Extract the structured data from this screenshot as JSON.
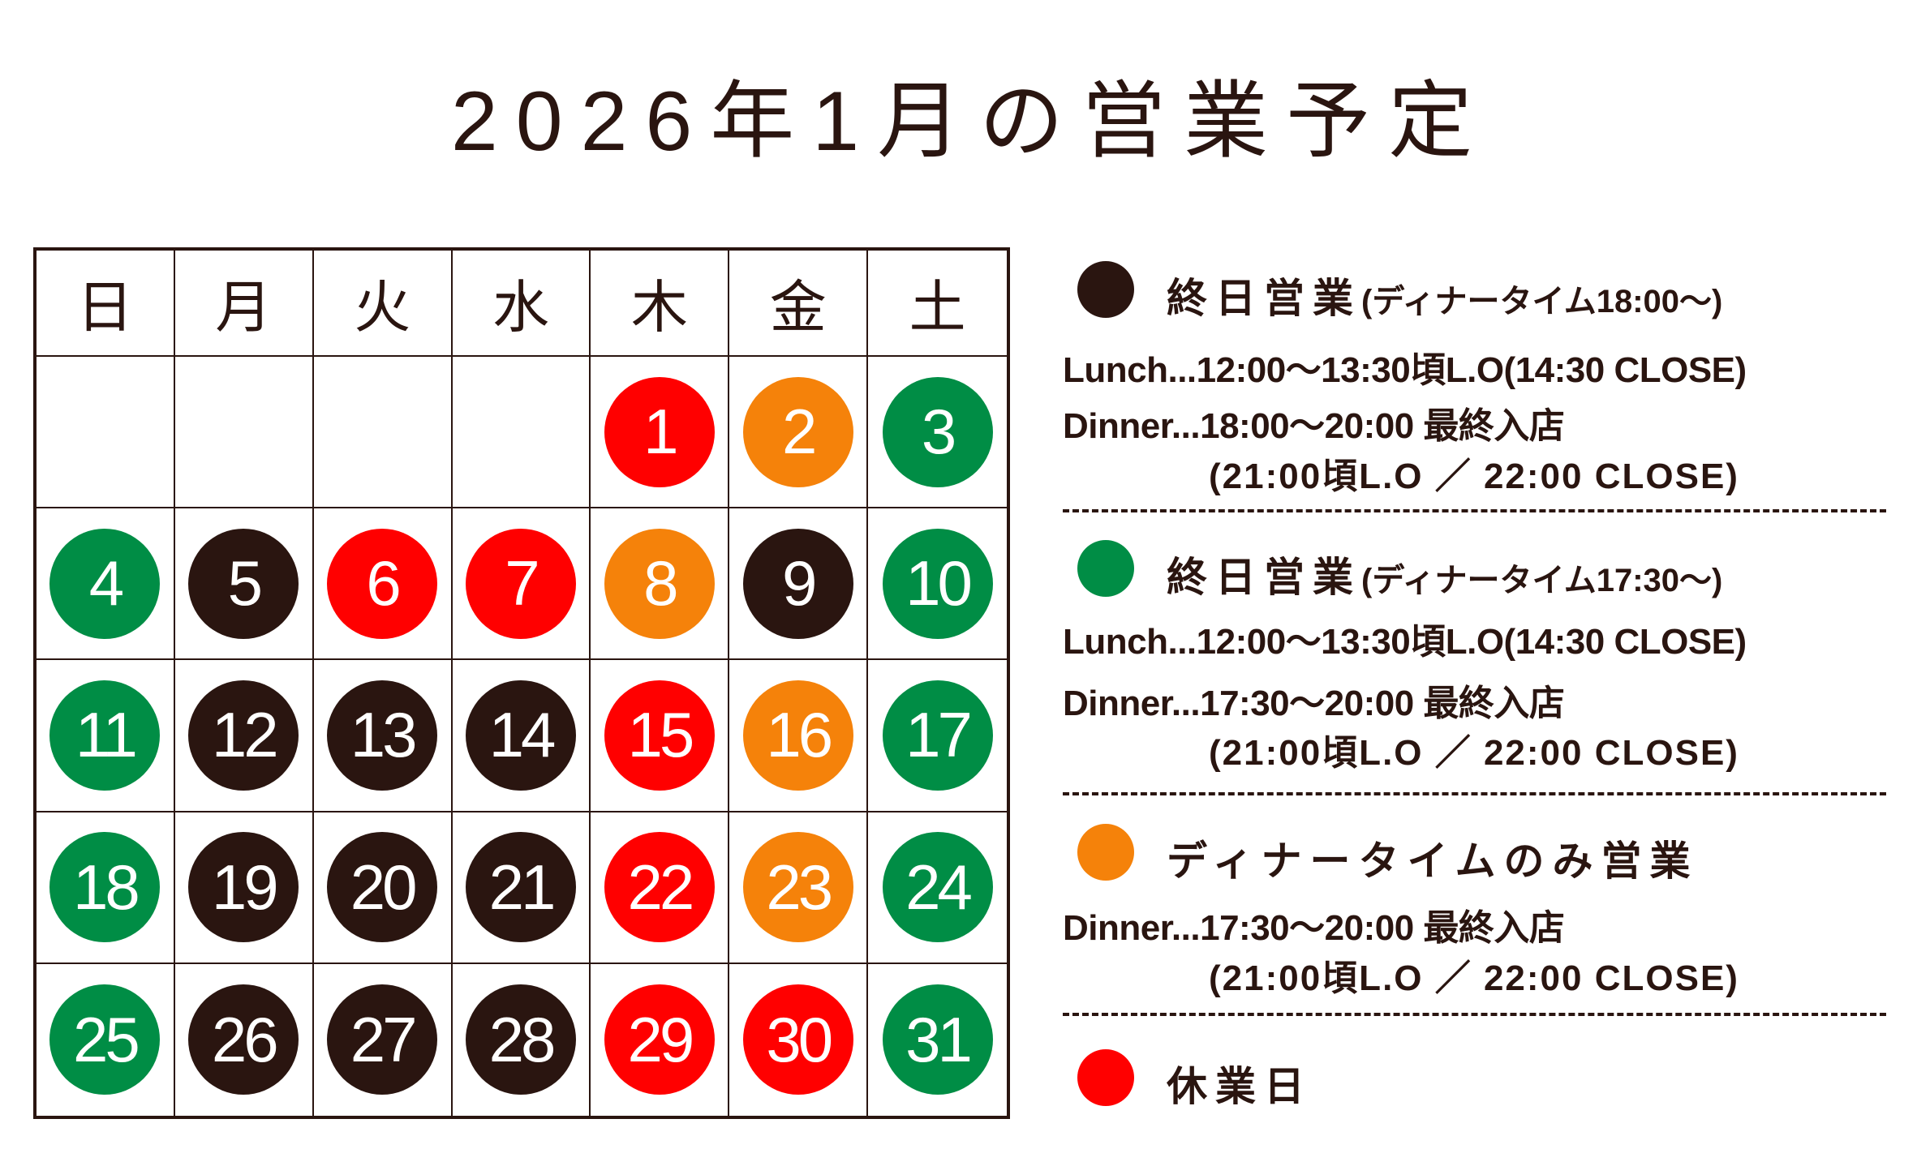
{
  "title": "2026年1月の営業予定",
  "colors": {
    "text": "#2a1510",
    "black": "#2a1510",
    "red": "#ff0000",
    "orange": "#f5820a",
    "green": "#008d45"
  },
  "calendar": {
    "weekdays": [
      "日",
      "月",
      "火",
      "水",
      "木",
      "金",
      "土"
    ],
    "first_weekday_index": 4,
    "days": [
      {
        "day": "1",
        "status": "red"
      },
      {
        "day": "2",
        "status": "orange"
      },
      {
        "day": "3",
        "status": "green"
      },
      {
        "day": "4",
        "status": "green"
      },
      {
        "day": "5",
        "status": "black"
      },
      {
        "day": "6",
        "status": "red"
      },
      {
        "day": "7",
        "status": "red"
      },
      {
        "day": "8",
        "status": "orange"
      },
      {
        "day": "9",
        "status": "black"
      },
      {
        "day": "10",
        "status": "green"
      },
      {
        "day": "11",
        "status": "green"
      },
      {
        "day": "12",
        "status": "black"
      },
      {
        "day": "13",
        "status": "black"
      },
      {
        "day": "14",
        "status": "black"
      },
      {
        "day": "15",
        "status": "red"
      },
      {
        "day": "16",
        "status": "orange"
      },
      {
        "day": "17",
        "status": "green"
      },
      {
        "day": "18",
        "status": "green"
      },
      {
        "day": "19",
        "status": "black"
      },
      {
        "day": "20",
        "status": "black"
      },
      {
        "day": "21",
        "status": "black"
      },
      {
        "day": "22",
        "status": "red"
      },
      {
        "day": "23",
        "status": "orange"
      },
      {
        "day": "24",
        "status": "green"
      },
      {
        "day": "25",
        "status": "green"
      },
      {
        "day": "26",
        "status": "black"
      },
      {
        "day": "27",
        "status": "black"
      },
      {
        "day": "28",
        "status": "black"
      },
      {
        "day": "29",
        "status": "red"
      },
      {
        "day": "30",
        "status": "red"
      },
      {
        "day": "31",
        "status": "green"
      }
    ]
  },
  "legend": [
    {
      "status": "black",
      "heading": "終日営業",
      "sub": "(ディナータイム18:00〜)",
      "lines": [
        "Lunch...12:00〜13:30頃L.O(14:30 CLOSE)",
        "Dinner...18:00〜20:00 最終入店"
      ],
      "indent": "(21:00頃L.O ／ 22:00 CLOSE)"
    },
    {
      "status": "green",
      "heading": "終日営業",
      "sub": "(ディナータイム17:30〜)",
      "lines": [
        "Lunch...12:00〜13:30頃L.O(14:30 CLOSE)",
        "Dinner...17:30〜20:00 最終入店"
      ],
      "indent": "(21:00頃L.O ／ 22:00 CLOSE)"
    },
    {
      "status": "orange",
      "heading": "ディナータイムのみ営業",
      "sub": "",
      "lines": [
        "Dinner...17:30〜20:00 最終入店"
      ],
      "indent": "(21:00頃L.O ／ 22:00 CLOSE)"
    },
    {
      "status": "red",
      "heading": "休業日",
      "sub": "",
      "lines": [],
      "indent": ""
    }
  ]
}
